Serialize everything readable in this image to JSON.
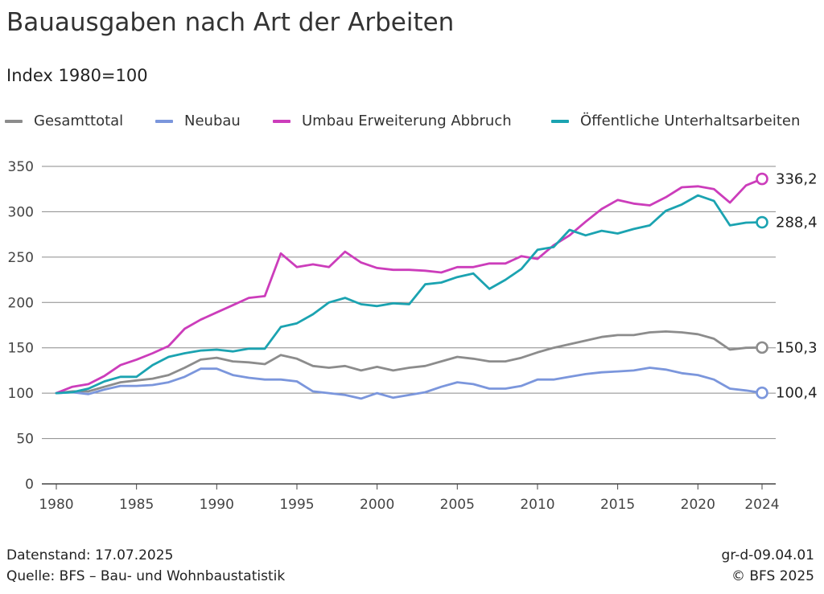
{
  "header": {
    "title": "Bauausgaben nach Art der Arbeiten",
    "subtitle": "Index 1980=100"
  },
  "footer": {
    "datenstand": "Datenstand: 17.07.2025",
    "quelle": "Quelle: BFS – Bau- und Wohnbaustatistik",
    "code": "gr-d-09.04.01",
    "copyright": "© BFS 2025"
  },
  "chart_data": {
    "type": "line",
    "title": "Bauausgaben nach Art der Arbeiten",
    "subtitle": "Index 1980=100",
    "xlabel": "",
    "ylabel": "",
    "xlim": [
      1980,
      2024
    ],
    "ylim": [
      0,
      350
    ],
    "grid": true,
    "legend_position": "top",
    "x_ticks": [
      1980,
      1985,
      1990,
      1995,
      2000,
      2005,
      2010,
      2015,
      2020,
      2024
    ],
    "y_ticks": [
      0,
      50,
      100,
      150,
      200,
      250,
      300,
      350
    ],
    "x": [
      1980,
      1981,
      1982,
      1983,
      1984,
      1985,
      1986,
      1987,
      1988,
      1989,
      1990,
      1991,
      1992,
      1993,
      1994,
      1995,
      1996,
      1997,
      1998,
      1999,
      2000,
      2001,
      2002,
      2003,
      2004,
      2005,
      2006,
      2007,
      2008,
      2009,
      2010,
      2011,
      2012,
      2013,
      2014,
      2015,
      2016,
      2017,
      2018,
      2019,
      2020,
      2021,
      2022,
      2023,
      2024
    ],
    "series": [
      {
        "name": "Gesamttotal",
        "color": "#8c8c8c",
        "end_label": "150,3",
        "values": [
          100,
          102,
          102,
          107,
          112,
          114,
          116,
          120,
          128,
          137,
          139,
          135,
          134,
          132,
          142,
          138,
          130,
          128,
          130,
          125,
          129,
          125,
          128,
          130,
          135,
          140,
          138,
          135,
          135,
          139,
          145,
          150,
          154,
          158,
          162,
          164,
          164,
          167,
          168,
          167,
          165,
          160,
          148,
          150,
          150.3
        ]
      },
      {
        "name": "Neubau",
        "color": "#7b96dc",
        "end_label": "100,4",
        "values": [
          100,
          101,
          99,
          104,
          108,
          108,
          109,
          112,
          118,
          127,
          127,
          120,
          117,
          115,
          115,
          113,
          102,
          100,
          98,
          94,
          100,
          95,
          98,
          101,
          107,
          112,
          110,
          105,
          105,
          108,
          115,
          115,
          118,
          121,
          123,
          124,
          125,
          128,
          126,
          122,
          120,
          115,
          105,
          103,
          100.4
        ]
      },
      {
        "name": "Umbau Erweiterung Abbruch",
        "color": "#cc3dbb",
        "end_label": "336,2",
        "values": [
          100,
          107,
          110,
          119,
          131,
          137,
          144,
          152,
          171,
          181,
          189,
          197,
          205,
          207,
          254,
          239,
          242,
          239,
          256,
          244,
          238,
          236,
          236,
          235,
          233,
          239,
          239,
          243,
          243,
          251,
          248,
          263,
          274,
          289,
          303,
          313,
          309,
          307,
          316,
          327,
          328,
          325,
          310,
          329,
          336.2
        ]
      },
      {
        "name": "Öffentliche Unterhaltsarbeiten",
        "color": "#1ba3b1",
        "end_label": "288,4",
        "values": [
          100,
          101,
          105,
          113,
          118,
          118,
          131,
          140,
          144,
          147,
          148,
          146,
          149,
          149,
          173,
          177,
          187,
          200,
          205,
          198,
          196,
          199,
          198,
          220,
          222,
          228,
          232,
          215,
          225,
          237,
          258,
          261,
          280,
          274,
          279,
          276,
          281,
          285,
          301,
          308,
          318,
          312,
          285,
          288,
          288.4
        ]
      }
    ]
  }
}
